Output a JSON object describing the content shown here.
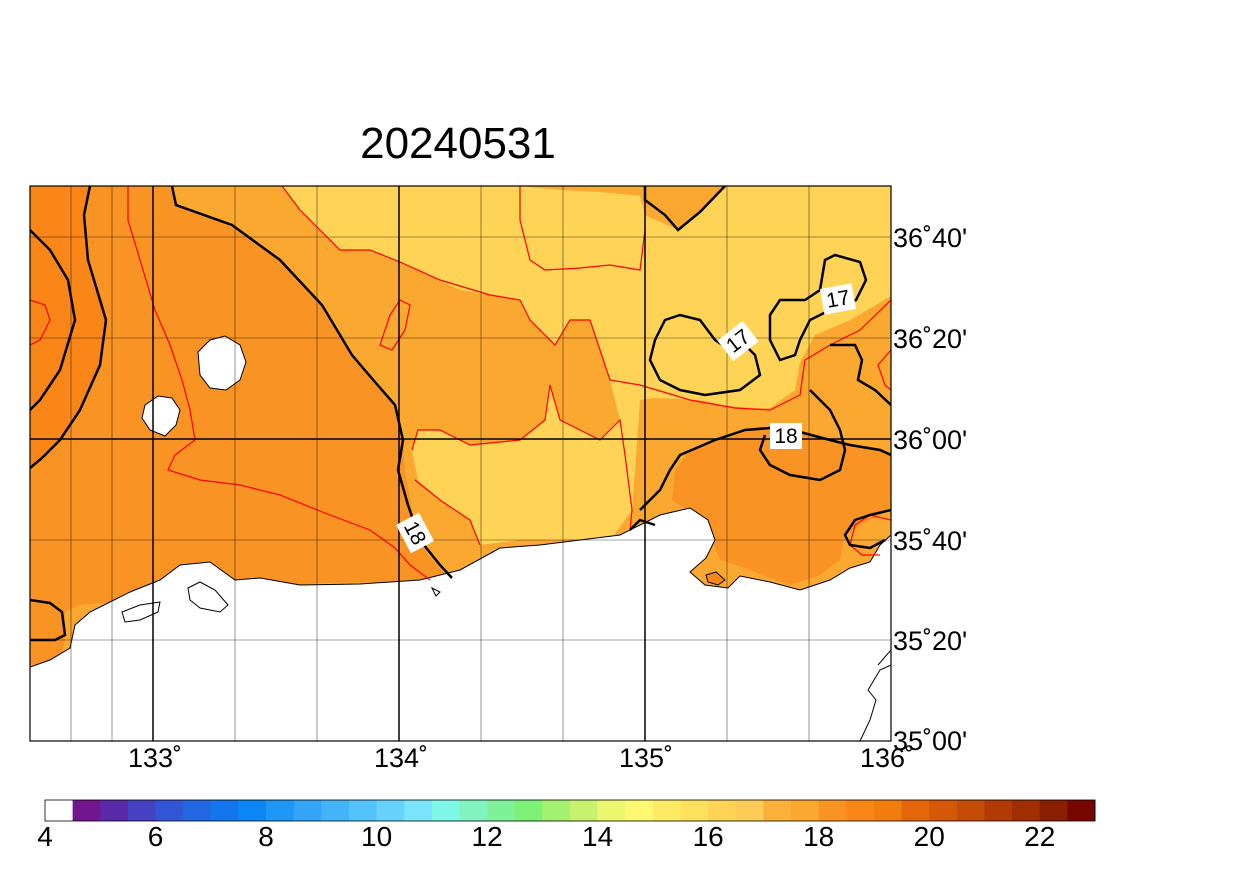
{
  "title": "20240531",
  "map": {
    "lon_range": [
      132.5,
      136.0
    ],
    "lat_range": [
      35.0,
      36.9167
    ],
    "lon_ticks": [
      "133˚",
      "134˚",
      "135˚",
      "136˚"
    ],
    "lat_ticks": [
      "36˚40'",
      "36˚20'",
      "36˚00'",
      "35˚40'",
      "35˚20'",
      "35˚00'"
    ],
    "contour_labels": [
      "17",
      "17",
      "18",
      "18"
    ],
    "colors": {
      "fill_17_18": "#fed356",
      "fill_18_19": "#fba831",
      "fill_19_20": "#f99324",
      "fill_20_21": "#f98617",
      "land": "#ffffff",
      "thin_contour": "#ff0000",
      "thick_contour": "#000000"
    }
  },
  "colorbar": {
    "labels": [
      "4",
      "6",
      "8",
      "10",
      "12",
      "14",
      "16",
      "18",
      "20",
      "22"
    ],
    "colors": [
      "#ffffff",
      "#74168f",
      "#5a2aab",
      "#4640c3",
      "#3356d7",
      "#2366e2",
      "#1476ec",
      "#0a87f5",
      "#1f97f7",
      "#32a5f8",
      "#43b4fa",
      "#55c3fb",
      "#66d2fd",
      "#7ae3ff",
      "#7ff7e6",
      "#80f3c0",
      "#7ef298",
      "#7df175",
      "#a4f16f",
      "#c8f26e",
      "#ecf76f",
      "#fff870",
      "#feeb63",
      "#fee15c",
      "#fed356",
      "#fecc56",
      "#fbb03a",
      "#fba831",
      "#f99324",
      "#f98617",
      "#f27c0c",
      "#e56608",
      "#d55808",
      "#c54b06",
      "#b23b05",
      "#a02e02",
      "#8a1f00",
      "#770500"
    ]
  }
}
